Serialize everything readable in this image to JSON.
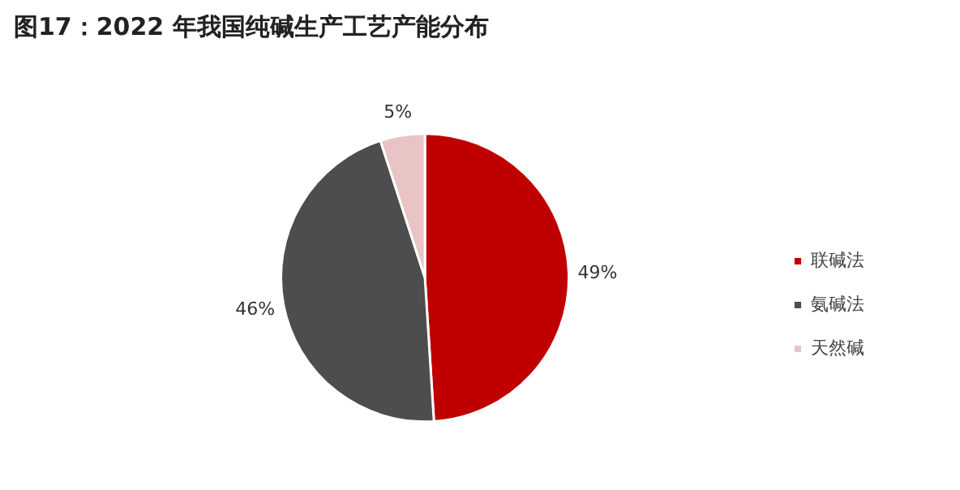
{
  "chart_data": {
    "type": "pie",
    "title": "图17：2022 年我国纯碱生产工艺产能分布",
    "categories": [
      "联碱法",
      "氨碱法",
      "天然碱"
    ],
    "values": [
      49,
      46,
      5
    ],
    "colors": [
      "#c00000",
      "#4d4d4f",
      "#e8c4c4"
    ],
    "value_labels": [
      "49%",
      "46%",
      "5%"
    ],
    "legend": "right"
  }
}
